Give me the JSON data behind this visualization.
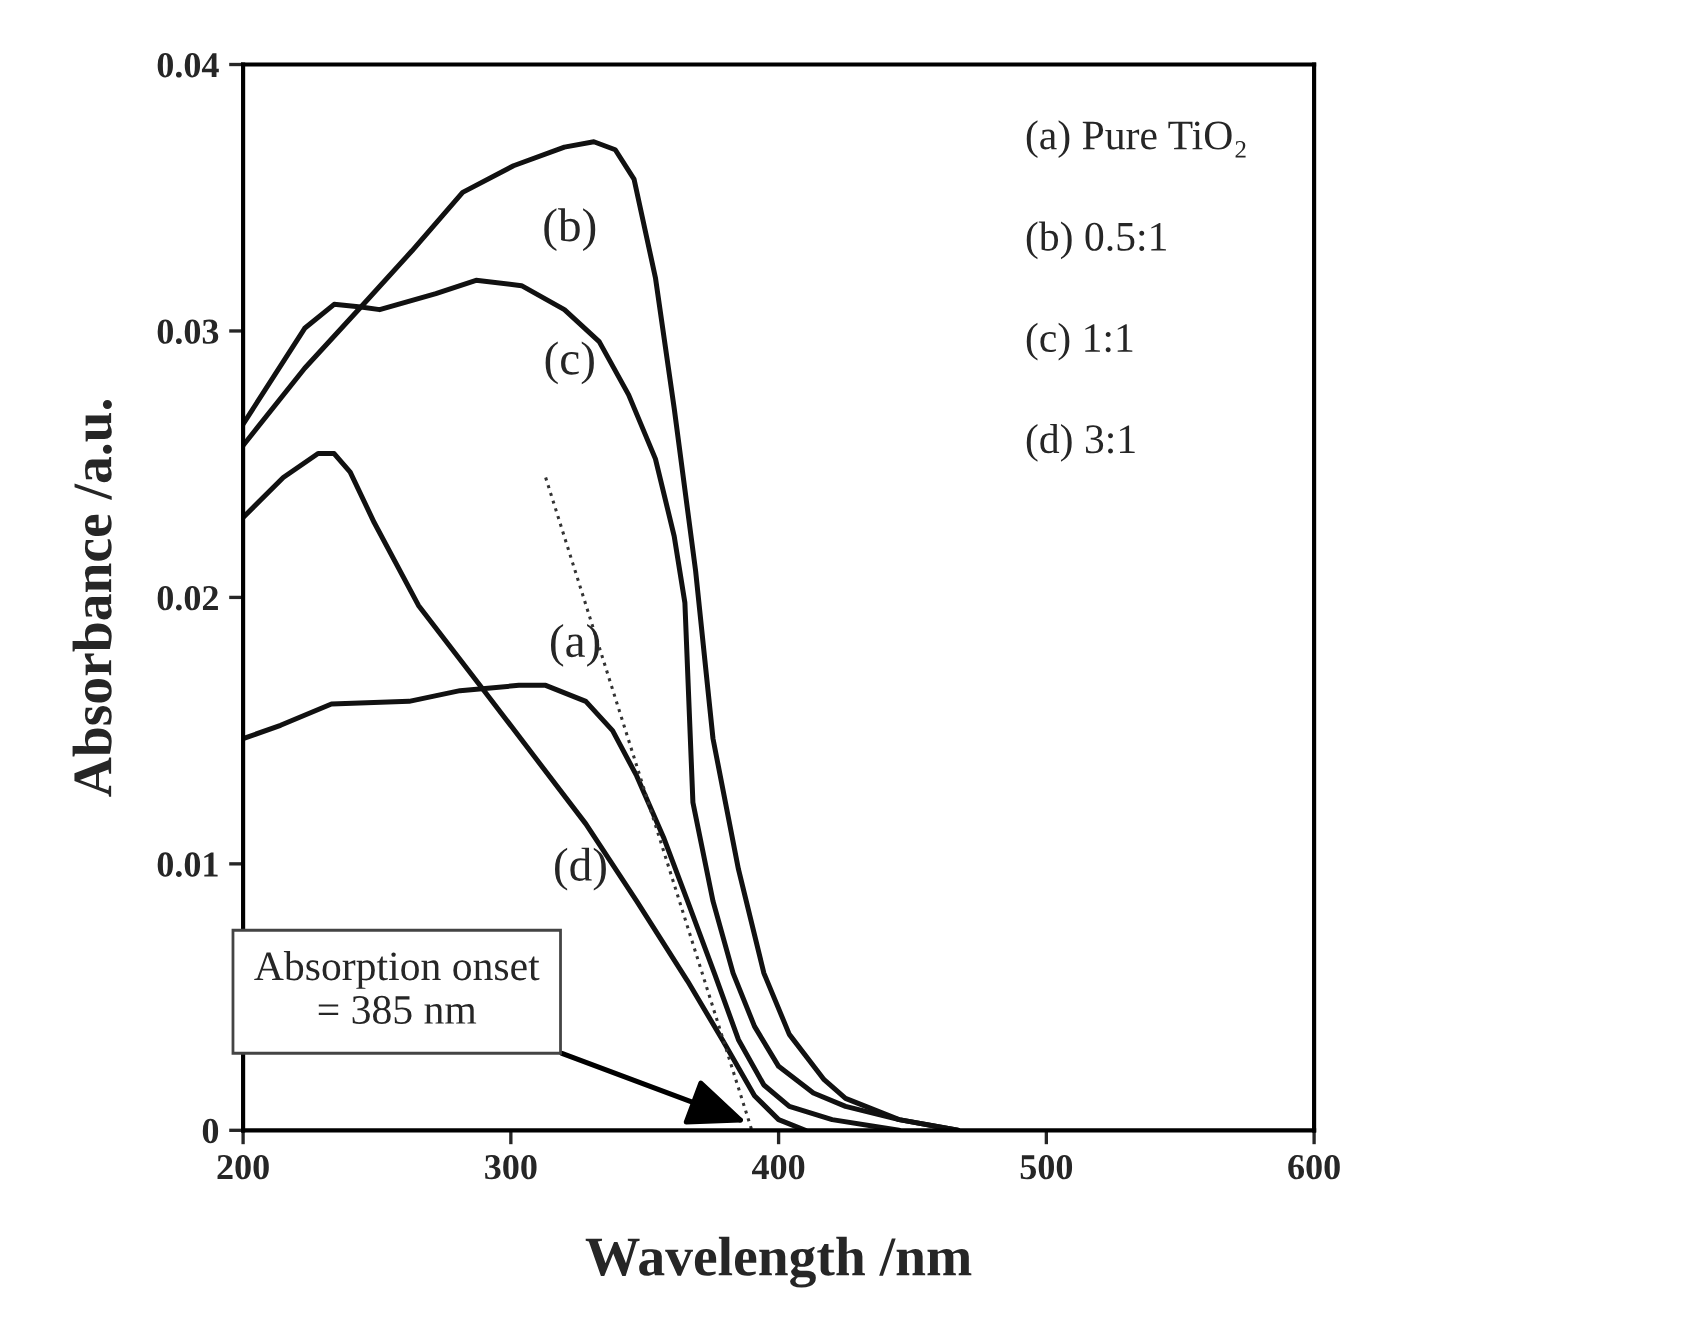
{
  "chart_data": {
    "type": "line",
    "xlabel": "Wavelength /nm",
    "ylabel": "Absorbance /a.u.",
    "xlim": [
      200,
      600
    ],
    "xticks": [
      200,
      300,
      400,
      500,
      600
    ],
    "ylim": [
      0,
      0.04
    ],
    "yticks": [
      0,
      0.01,
      0.02,
      0.03,
      0.04
    ],
    "grid": false,
    "legend": false,
    "marker": "none",
    "line_style": "solid",
    "series": [
      {
        "color": "#111111",
        "x": [
          200,
          214,
          233,
          262,
          281,
          303,
          313,
          328,
          338,
          347,
          357,
          366,
          376,
          385,
          394.5,
          404,
          420,
          445
        ],
        "values": [
          0.0147,
          0.0152,
          0.016,
          0.0161,
          0.0165,
          0.0167,
          0.0167,
          0.0161,
          0.015,
          0.0133,
          0.011,
          0.0086,
          0.0059,
          0.0034,
          0.0017,
          0.0009,
          0.0004,
          0
        ]
      },
      {
        "color": "#111111",
        "x": [
          200,
          223,
          244,
          263,
          282,
          301,
          320,
          331,
          339,
          346,
          354,
          361,
          369,
          375.5,
          385,
          394.5,
          404,
          417,
          425,
          445,
          467
        ],
        "values": [
          0.0257,
          0.0286,
          0.0309,
          0.033,
          0.0352,
          0.0362,
          0.0369,
          0.0371,
          0.0368,
          0.0357,
          0.032,
          0.0271,
          0.021,
          0.0147,
          0.0098,
          0.0059,
          0.0036,
          0.0019,
          0.0012,
          0.0004,
          0
        ]
      },
      {
        "color": "#111111",
        "x": [
          200,
          223,
          234,
          244,
          251,
          272,
          287,
          304,
          320,
          333,
          344,
          354,
          361,
          365,
          368,
          375.5,
          383,
          391,
          400,
          413,
          425,
          445,
          467
        ],
        "values": [
          0.0265,
          0.0301,
          0.031,
          0.0309,
          0.0308,
          0.0314,
          0.0319,
          0.0317,
          0.0308,
          0.0296,
          0.0276,
          0.0252,
          0.0223,
          0.0198,
          0.0123,
          0.0086,
          0.0059,
          0.0039,
          0.0024,
          0.0014,
          0.0009,
          0.0004,
          0
        ]
      },
      {
        "color": "#111111",
        "x": [
          200,
          215,
          228,
          234,
          240,
          249,
          265.5,
          290,
          309,
          328,
          347,
          366,
          379,
          391,
          400,
          410
        ],
        "values": [
          0.023,
          0.0245,
          0.0254,
          0.0254,
          0.0247,
          0.0228,
          0.0197,
          0.0165,
          0.014,
          0.0115,
          0.0086,
          0.0056,
          0.0034,
          0.0013,
          0.0004,
          0
        ]
      },
      {
        "color": "#333333",
        "line_style": "dotted",
        "x": [
          313,
          390
        ],
        "values": [
          0.0245,
          0
        ]
      }
    ],
    "annotations": [
      "(a)",
      "(b)",
      "(c)",
      "(d)",
      {
        "text": "Absorption onset\n= 385 nm",
        "x": 388,
        "y": 0.0003
      },
      "(a) Pure TiO₂",
      "(b) 0.5:1",
      "(c) 1:1",
      "(d) 3:1"
    ]
  }
}
